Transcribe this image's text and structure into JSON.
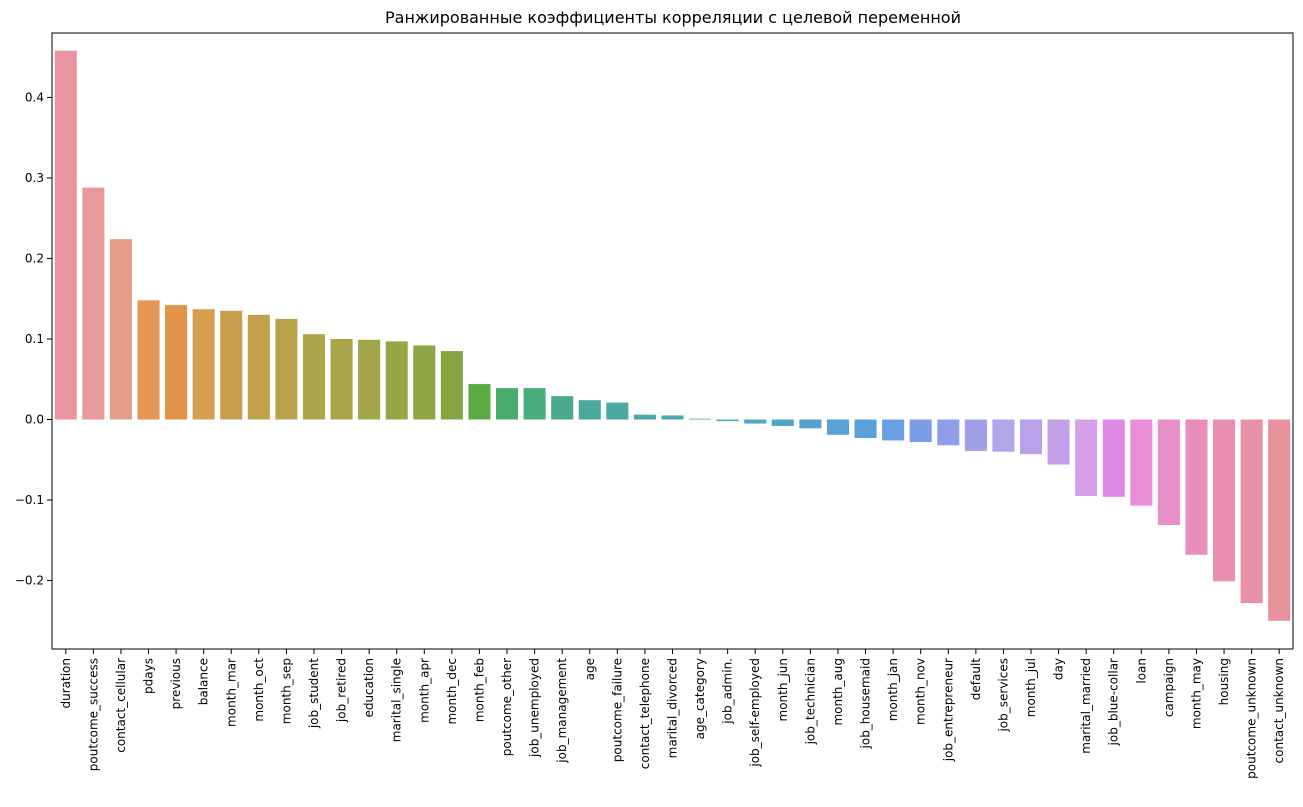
{
  "chart_data": {
    "type": "bar",
    "title": "Ранжированные коэффициенты корреляции с целевой переменной",
    "xlabel": "",
    "ylabel": "",
    "ylim": [
      -0.285,
      0.48
    ],
    "yticks": [
      -0.2,
      -0.1,
      0.0,
      0.1,
      0.2,
      0.3,
      0.4
    ],
    "ytick_labels": [
      "−0.2",
      "−0.1",
      "0.0",
      "0.1",
      "0.2",
      "0.3",
      "0.4"
    ],
    "grid": false,
    "legend": "none",
    "categories": [
      "duration",
      "poutcome_success",
      "contact_cellular",
      "pdays",
      "previous",
      "balance",
      "month_mar",
      "month_oct",
      "month_sep",
      "job_student",
      "job_retired",
      "education",
      "marital_single",
      "month_apr",
      "month_dec",
      "month_feb",
      "poutcome_other",
      "job_unemployed",
      "job_management",
      "age",
      "poutcome_failure",
      "contact_telephone",
      "marital_divorced",
      "age_category",
      "job_admin.",
      "job_self-employed",
      "month_jun",
      "job_technician",
      "month_aug",
      "job_housemaid",
      "month_jan",
      "month_nov",
      "job_entrepreneur",
      "default",
      "job_services",
      "month_jul",
      "day",
      "marital_married",
      "job_blue-collar",
      "loan",
      "campaign",
      "month_may",
      "housing",
      "poutcome_unknown",
      "contact_unknown"
    ],
    "values": [
      0.458,
      0.288,
      0.224,
      0.148,
      0.142,
      0.137,
      0.135,
      0.13,
      0.125,
      0.106,
      0.1,
      0.099,
      0.097,
      0.092,
      0.085,
      0.044,
      0.039,
      0.039,
      0.029,
      0.024,
      0.021,
      0.006,
      0.005,
      0.001,
      -0.002,
      -0.005,
      -0.008,
      -0.011,
      -0.019,
      -0.023,
      -0.026,
      -0.028,
      -0.032,
      -0.039,
      -0.04,
      -0.043,
      -0.056,
      -0.095,
      -0.096,
      -0.107,
      -0.131,
      -0.168,
      -0.201,
      -0.228,
      -0.25
    ],
    "colors": [
      "#ea949f",
      "#e8999a",
      "#e59c86",
      "#e49653",
      "#e19348",
      "#d49f4e",
      "#c89e4c",
      "#c2a04b",
      "#b9a24a",
      "#b0a449",
      "#a9a548",
      "#a1a447",
      "#97a545",
      "#8ea544",
      "#84a643",
      "#59aa42",
      "#48ac6a",
      "#48ac7b",
      "#49aa8d",
      "#4aa99b",
      "#4aa9a0",
      "#4ba8a6",
      "#4ca8ac",
      "#4da7b1",
      "#4da7b6",
      "#4fa6bf",
      "#51a5c5",
      "#55a3cd",
      "#58a2d4",
      "#5ba0d9",
      "#6a9fe3",
      "#7b9de6",
      "#8e9ee8",
      "#a09fe9",
      "#b1a6e9",
      "#b8a2ea",
      "#c49fe9",
      "#d59fe9",
      "#e088e6",
      "#e98ed7",
      "#e98fc8",
      "#e98ebb",
      "#e98fb1",
      "#e890a5",
      "#e8929c"
    ]
  }
}
